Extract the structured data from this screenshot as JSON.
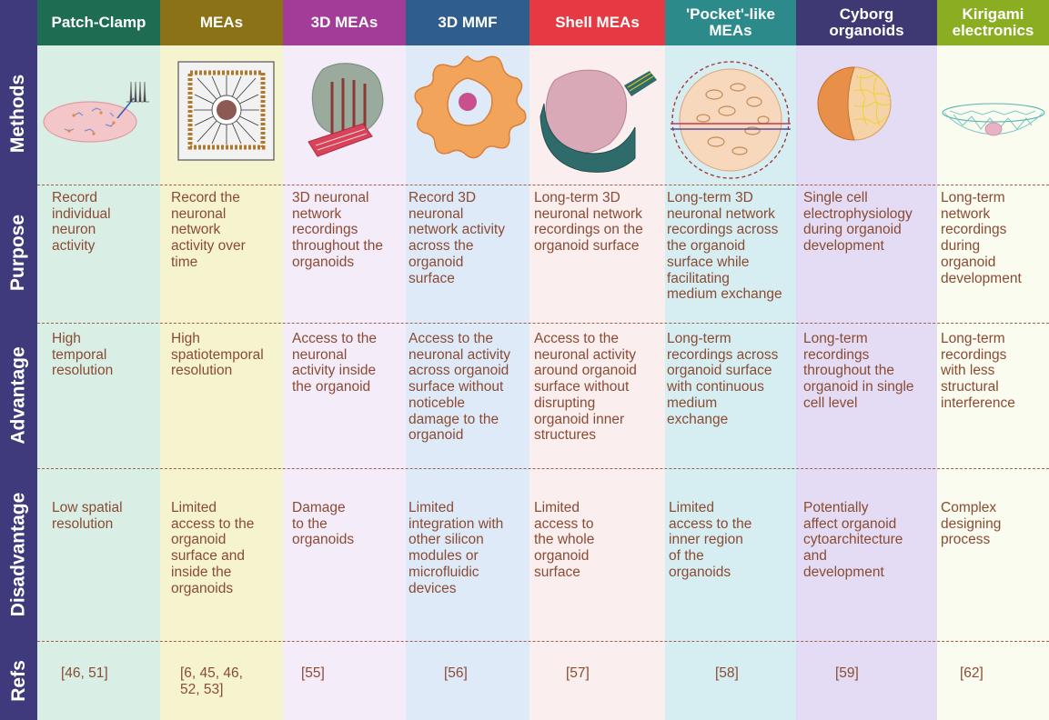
{
  "row_labels": [
    "Methods",
    "Purpose",
    "Advantage",
    "Disadvantage",
    "Refs"
  ],
  "columns": [
    {
      "title": "Patch-Clamp",
      "header_color": "#1e6d52",
      "bg_color": "#d9efe6",
      "purpose": "Record\nindividual\nneuron\nactivity",
      "advantage": "High\ntemporal\nresolution",
      "disadvantage": "Low spatial\nresolution",
      "refs": "[46, 51]"
    },
    {
      "title": "MEAs",
      "header_color": "#8c7216",
      "bg_color": "#f6f3cf",
      "purpose": "Record the\nneuronal\nnetwork\nactivity over\ntime",
      "advantage": "High\nspatiotemporal\nresolution",
      "disadvantage": "Limited\naccess to the\norganoid\nsurface  and\ninside the\norganoids",
      "refs": "[6, 45, 46,\n52, 53]"
    },
    {
      "title": "3D MEAs",
      "header_color": "#a33b98",
      "bg_color": "#f5ecfa",
      "purpose": "3D neuronal\nnetwork\nrecordings\nthroughout the\norganoids",
      "advantage": "Access to the\nneuronal\nactivity inside\nthe organoid",
      "disadvantage": "Damage\nto the\norganoids",
      "refs": "[55]"
    },
    {
      "title": "3D MMF",
      "header_color": "#2f5d8c",
      "bg_color": "#dfeaf9",
      "purpose": "Record 3D\nneuronal\nnetwork activity\nacross the\norganoid\nsurface",
      "advantage": "Access to the\nneuronal activity\nacross organoid\nsurface without\nnoticeble\ndamage to the\norganoid",
      "disadvantage": "Limited\nintegration with\nother silicon\nmodules or\nmicrofluidic\ndevices",
      "refs": "[56]"
    },
    {
      "title": "Shell MEAs",
      "header_color": "#e53a44",
      "bg_color": "#fbeeee",
      "purpose": "Long-term 3D\nneuronal network\nrecordings on the\norganoid surface",
      "advantage": "Access to the\nneuronal activity\naround organoid\nsurface without\ndisrupting\norganoid inner\nstructures",
      "disadvantage": "Limited\naccess to\nthe whole\norganoid\nsurface",
      "refs": "[57]"
    },
    {
      "title": "'Pocket'-like\nMEAs",
      "header_color": "#2d8a8a",
      "bg_color": "#d6eef2",
      "purpose": "Long-term 3D\nneuronal network\nrecordings across\nthe organoid\nsurface while\nfacilitating\nmedium exchange",
      "advantage": "Long-term\nrecordings across\norganoid surface\nwith continuous\nmedium\nexchange",
      "disadvantage": "Limited\naccess to the\ninner region\nof the\norganoids",
      "refs": "[58]"
    },
    {
      "title": "Cyborg\norganoids",
      "header_color": "#3e3873",
      "bg_color": "#e3dcf4",
      "purpose": "Single cell\nelectrophysiology\nduring organoid\ndevelopment",
      "advantage": "Long-term\nrecordings\nthroughout the\norganoid in single\ncell level",
      "disadvantage": "Potentially\naffect organoid\ncytoarchitecture\nand\ndevelopment",
      "refs": "[59]"
    },
    {
      "title": "Kirigami\nelectronics",
      "header_color": "#8aad22",
      "bg_color": "#fbfcf0",
      "purpose": "Long-term\nnetwork\nrecordings\nduring\norganoid\ndevelopment",
      "advantage": "Long-term\nrecordings\nwith less\nstructural\ninterference",
      "disadvantage": "Complex\ndesigning\nprocess",
      "refs": "[62]"
    }
  ]
}
